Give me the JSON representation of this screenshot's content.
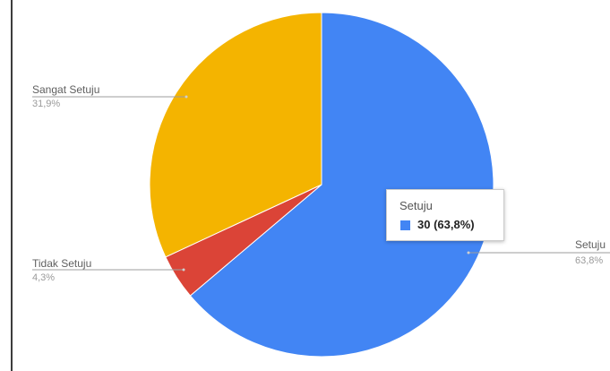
{
  "chart_data": {
    "type": "pie",
    "slices": [
      {
        "label": "Setuju",
        "percent_label": "63,8%",
        "value": 30,
        "percent": 63.8,
        "color": "#4285f4"
      },
      {
        "label": "Tidak Setuju",
        "percent_label": "4,3%",
        "value": 2,
        "percent": 4.3,
        "color": "#db4437"
      },
      {
        "label": "Sangat Setuju",
        "percent_label": "31,9%",
        "value": 15,
        "percent": 31.9,
        "color": "#f4b400"
      }
    ],
    "start_angle_deg": 0,
    "direction": "clockwise",
    "legend": "none",
    "labels_position": "outside-with-leader-lines"
  },
  "tooltip": {
    "title": "Setuju",
    "value_text": "30 (63,8%)",
    "swatch_color": "#4285f4"
  }
}
